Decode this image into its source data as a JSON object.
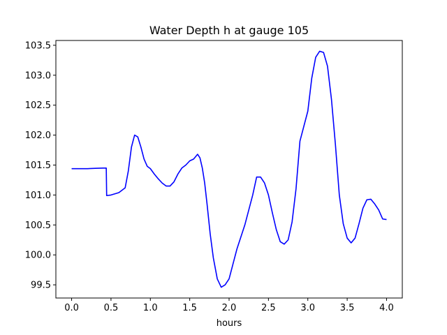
{
  "chart_data": {
    "type": "line",
    "title": "Water Depth h at gauge 105",
    "xlabel": "hours",
    "ylabel": "",
    "xlim": [
      -0.2,
      4.2
    ],
    "ylim": [
      99.28,
      103.58
    ],
    "xticks": [
      0.0,
      0.5,
      1.0,
      1.5,
      2.0,
      2.5,
      3.0,
      3.5,
      4.0
    ],
    "xtick_labels": [
      "0.0",
      "0.5",
      "1.0",
      "1.5",
      "2.0",
      "2.5",
      "3.0",
      "3.5",
      "4.0"
    ],
    "yticks": [
      99.5,
      100.0,
      100.5,
      101.0,
      101.5,
      102.0,
      102.5,
      103.0,
      103.5
    ],
    "ytick_labels": [
      "99.5",
      "100.0",
      "100.5",
      "101.0",
      "101.5",
      "102.0",
      "102.5",
      "103.0",
      "103.5"
    ],
    "grid": false,
    "series": [
      {
        "color": "#0000ff",
        "x": [
          0.0,
          0.1,
          0.2,
          0.3,
          0.4,
          0.44,
          0.445,
          0.5,
          0.6,
          0.68,
          0.72,
          0.76,
          0.8,
          0.84,
          0.88,
          0.92,
          0.96,
          1.0,
          1.05,
          1.1,
          1.15,
          1.2,
          1.25,
          1.3,
          1.35,
          1.4,
          1.45,
          1.5,
          1.55,
          1.6,
          1.63,
          1.66,
          1.69,
          1.72,
          1.76,
          1.8,
          1.85,
          1.9,
          1.95,
          2.0,
          2.05,
          2.1,
          2.2,
          2.3,
          2.35,
          2.4,
          2.45,
          2.5,
          2.55,
          2.6,
          2.65,
          2.7,
          2.75,
          2.8,
          2.85,
          2.9,
          3.0,
          3.05,
          3.1,
          3.15,
          3.2,
          3.25,
          3.3,
          3.35,
          3.4,
          3.45,
          3.5,
          3.55,
          3.6,
          3.65,
          3.7,
          3.75,
          3.8,
          3.85,
          3.9,
          3.95,
          4.0
        ],
        "y": [
          101.44,
          101.44,
          101.44,
          101.445,
          101.45,
          101.45,
          100.99,
          101.0,
          101.04,
          101.12,
          101.4,
          101.8,
          102.0,
          101.97,
          101.8,
          101.6,
          101.48,
          101.44,
          101.35,
          101.27,
          101.2,
          101.15,
          101.15,
          101.22,
          101.35,
          101.45,
          101.5,
          101.57,
          101.6,
          101.68,
          101.62,
          101.45,
          101.2,
          100.85,
          100.35,
          99.95,
          99.6,
          99.46,
          99.5,
          99.6,
          99.85,
          100.1,
          100.5,
          101.0,
          101.3,
          101.3,
          101.2,
          101.0,
          100.7,
          100.42,
          100.22,
          100.18,
          100.25,
          100.55,
          101.1,
          101.9,
          102.4,
          102.95,
          103.3,
          103.4,
          103.38,
          103.15,
          102.6,
          101.85,
          101.0,
          100.52,
          100.28,
          100.2,
          100.28,
          100.52,
          100.78,
          100.92,
          100.93,
          100.85,
          100.75,
          100.6,
          100.59
        ]
      }
    ]
  }
}
